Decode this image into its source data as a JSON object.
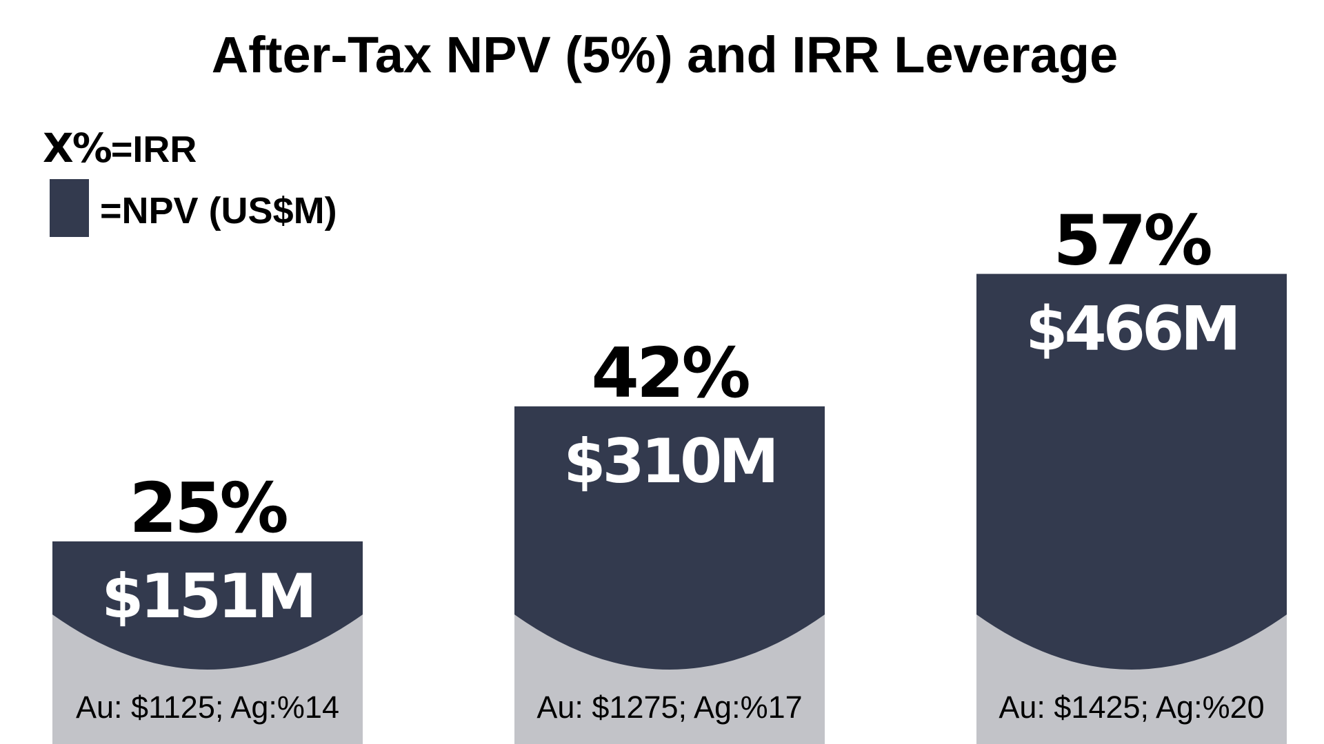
{
  "chart_data": {
    "type": "bar",
    "title": "After-Tax NPV (5%) and IRR Leverage",
    "legend": {
      "irr_key": "X%",
      "irr_suffix": "=IRR",
      "npv_text": "=NPV (US$M)",
      "position": "top-left"
    },
    "categories": [
      "Au: $1125; Ag:%14",
      "Au: $1275; Ag:%17",
      "Au: $1425; Ag:%20"
    ],
    "series": [
      {
        "name": "NPV (US$M)",
        "values": [
          151,
          310,
          466
        ],
        "labels": [
          "$151M",
          "$310M",
          "$466M"
        ]
      },
      {
        "name": "IRR",
        "values": [
          25,
          42,
          57
        ],
        "labels": [
          "25%",
          "42%",
          "57%"
        ]
      }
    ],
    "ylim": [
      0,
      500
    ],
    "grid": false,
    "xlabel": "",
    "ylabel": ""
  },
  "colors": {
    "bar": "#333a4e",
    "base": "#c2c3c8",
    "background": "#ffffff"
  }
}
